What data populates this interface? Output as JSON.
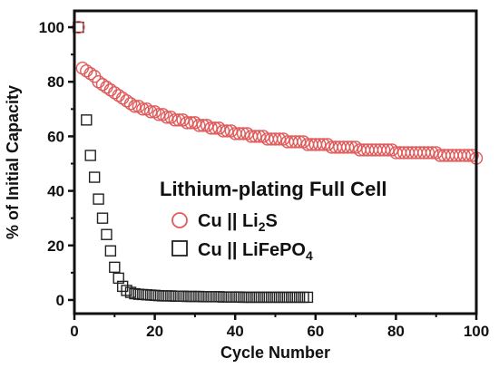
{
  "chart_data": {
    "type": "scatter",
    "title": "",
    "xlabel": "Cycle Number",
    "ylabel": "% of Initial Capacity",
    "xlim": [
      0,
      100
    ],
    "ylim": [
      -5,
      106
    ],
    "x_ticks": [
      0,
      20,
      40,
      60,
      80,
      100
    ],
    "y_ticks": [
      0,
      20,
      40,
      60,
      80,
      100
    ],
    "grid": false,
    "legend_title": "Lithium-plating Full Cell",
    "legend_position": "center-right",
    "series": [
      {
        "name": "Cu || Li2S",
        "legend_parts": [
          "Cu || Li",
          "2",
          "S"
        ],
        "marker": "circle-open",
        "color": "#e05a5a",
        "x": [
          1,
          2,
          3,
          4,
          5,
          6,
          7,
          8,
          9,
          10,
          11,
          12,
          13,
          14,
          15,
          16,
          17,
          18,
          19,
          20,
          21,
          22,
          23,
          24,
          25,
          26,
          27,
          28,
          29,
          30,
          31,
          32,
          33,
          34,
          35,
          36,
          37,
          38,
          39,
          40,
          41,
          42,
          43,
          44,
          45,
          46,
          47,
          48,
          49,
          50,
          51,
          52,
          53,
          54,
          55,
          56,
          57,
          58,
          59,
          60,
          61,
          62,
          63,
          64,
          65,
          66,
          67,
          68,
          69,
          70,
          71,
          72,
          73,
          74,
          75,
          76,
          77,
          78,
          79,
          80,
          81,
          82,
          83,
          84,
          85,
          86,
          87,
          88,
          89,
          90,
          91,
          92,
          93,
          94,
          95,
          96,
          97,
          98,
          99,
          100
        ],
        "y": [
          100,
          85,
          84,
          83,
          82,
          80,
          79,
          78,
          77,
          76,
          75,
          74,
          73,
          72,
          71,
          71,
          70,
          70,
          69,
          69,
          68,
          68,
          67,
          67,
          66,
          66,
          66,
          65,
          65,
          65,
          64,
          64,
          64,
          63,
          63,
          63,
          62,
          62,
          62,
          61,
          61,
          61,
          61,
          60,
          60,
          60,
          60,
          59,
          59,
          59,
          59,
          59,
          58,
          58,
          58,
          58,
          58,
          57,
          57,
          57,
          57,
          57,
          57,
          56,
          56,
          56,
          56,
          56,
          56,
          56,
          55,
          55,
          55,
          55,
          55,
          55,
          55,
          55,
          55,
          54,
          54,
          54,
          54,
          54,
          54,
          54,
          54,
          54,
          54,
          54,
          53,
          53,
          53,
          53,
          53,
          53,
          53,
          53,
          53,
          52
        ]
      },
      {
        "name": "Cu || LiFePO4",
        "legend_parts": [
          "Cu || LiFePO",
          "4",
          ""
        ],
        "marker": "square-open",
        "color": "#222222",
        "x": [
          1,
          3,
          4,
          5,
          6,
          7,
          8,
          9,
          10,
          11,
          12,
          13,
          14,
          15,
          16,
          17,
          18,
          19,
          20,
          21,
          22,
          23,
          24,
          25,
          26,
          27,
          28,
          29,
          30,
          31,
          32,
          33,
          34,
          35,
          36,
          37,
          38,
          39,
          40,
          41,
          42,
          43,
          44,
          45,
          46,
          47,
          48,
          49,
          50,
          51,
          52,
          53,
          54,
          55,
          56,
          57,
          58
        ],
        "y": [
          100,
          66,
          53,
          45,
          37,
          30,
          24,
          18,
          12,
          8,
          5,
          3.5,
          2.8,
          2.3,
          2.1,
          2,
          1.9,
          1.8,
          1.7,
          1.6,
          1.5,
          1.5,
          1.5,
          1.4,
          1.4,
          1.4,
          1.3,
          1.3,
          1.3,
          1.3,
          1.2,
          1.2,
          1.2,
          1.2,
          1.2,
          1.1,
          1.1,
          1.1,
          1.1,
          1.1,
          1,
          1,
          1,
          1,
          1,
          1,
          1,
          1,
          1,
          1,
          1,
          1,
          1,
          1,
          1,
          1,
          1
        ]
      }
    ]
  }
}
